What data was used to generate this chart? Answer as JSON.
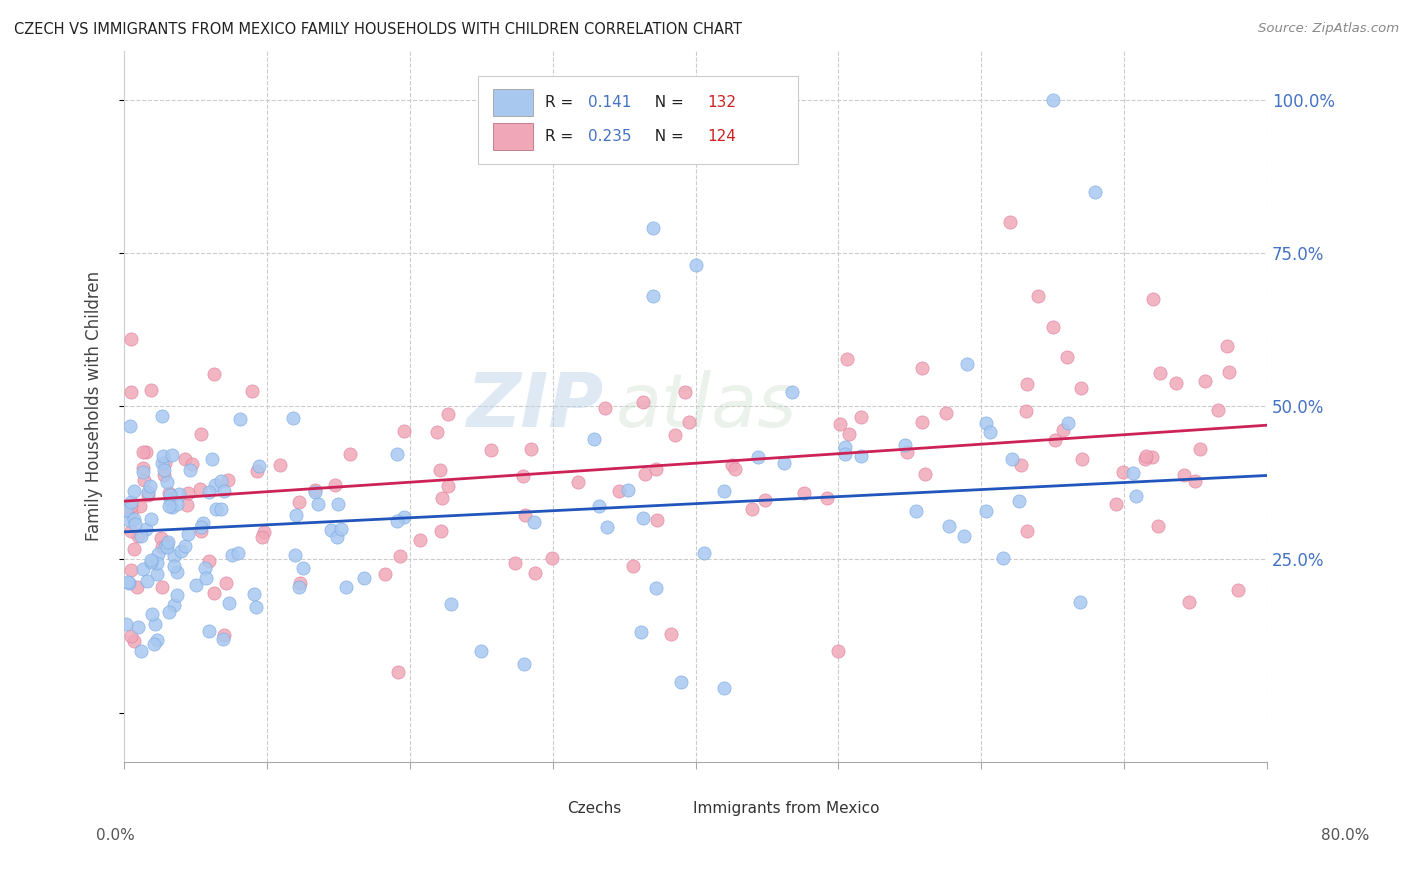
{
  "title": "CZECH VS IMMIGRANTS FROM MEXICO FAMILY HOUSEHOLDS WITH CHILDREN CORRELATION CHART",
  "source": "Source: ZipAtlas.com",
  "ylabel": "Family Households with Children",
  "czech_color": "#a8c8f0",
  "mexico_color": "#f0a8b8",
  "czech_edge_color": "#7aaae0",
  "mexico_edge_color": "#e080a0",
  "czech_line_color": "#2255bb",
  "mexico_line_color": "#cc2255",
  "R_czech": 0.141,
  "N_czech": 132,
  "R_mexico": 0.235,
  "N_mexico": 124,
  "czech_intercept": 0.295,
  "czech_slope": 0.115,
  "mexico_intercept": 0.345,
  "mexico_slope": 0.155,
  "watermark": "ZIPatlas",
  "ytick_vals": [
    0.0,
    0.25,
    0.5,
    0.75,
    1.0
  ],
  "ytick_labels": [
    "",
    "25.0%",
    "50.0%",
    "75.0%",
    "100.0%"
  ],
  "xmin": 0.0,
  "xmax": 0.8,
  "ymin": -0.08,
  "ymax": 1.08
}
